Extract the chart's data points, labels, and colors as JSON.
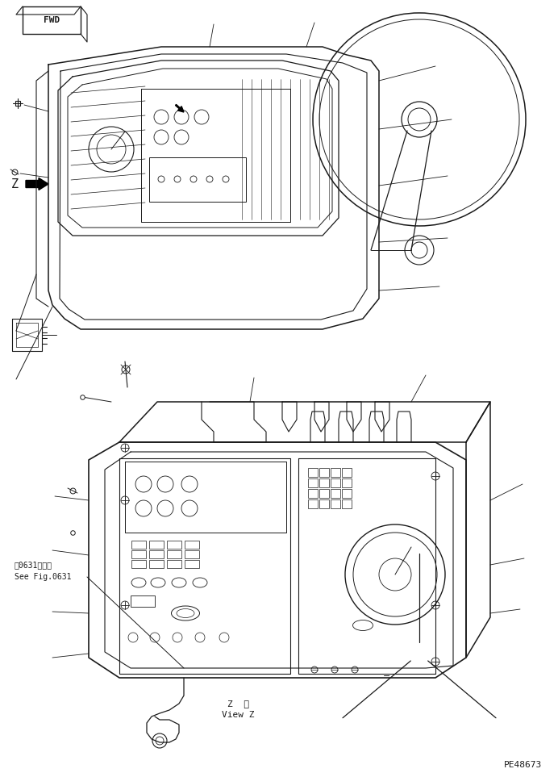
{
  "bg_color": "#ffffff",
  "line_color": "#1a1a1a",
  "fig_width": 6.92,
  "fig_height": 9.58,
  "dpi": 100,
  "label_fwd": "FWD",
  "label_z": "Z",
  "label_view_z_jp": "Z  視",
  "label_view_z_en": "View Z",
  "label_ref_jp": "ㅧ0631図参照",
  "label_ref_en": "See Fig.0631",
  "label_part_number": "PE48673"
}
